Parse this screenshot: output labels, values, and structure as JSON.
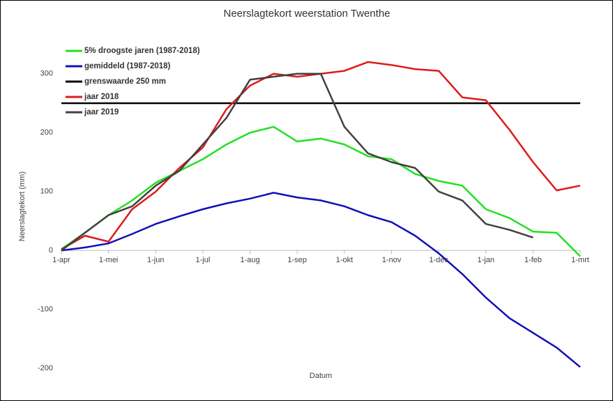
{
  "chart_data": {
    "type": "line",
    "title": "Neerslagtekort weerstation Twenthe",
    "x_label": "Datum",
    "y_label": "Neerslagtekort (mm)",
    "categories": [
      "1-apr",
      null,
      "1-mei",
      null,
      "1-jun",
      null,
      "1-jul",
      null,
      "1-aug",
      null,
      "1-sep",
      null,
      "1-okt",
      null,
      "1-nov",
      null,
      "1-dec",
      null,
      "1-jan",
      null,
      "1-feb",
      null,
      "1-mrt"
    ],
    "series": [
      {
        "name": "5% droogste jaren (1987-2018)",
        "color": "#22e022",
        "values": [
          2,
          30,
          60,
          85,
          115,
          135,
          155,
          180,
          200,
          210,
          185,
          190,
          180,
          160,
          155,
          130,
          118,
          110,
          70,
          55,
          32,
          30,
          -10
        ]
      },
      {
        "name": "gemiddeld (1987-2018)",
        "color": "#1010b8",
        "values": [
          0,
          5,
          12,
          28,
          45,
          58,
          70,
          80,
          88,
          98,
          90,
          85,
          75,
          60,
          48,
          25,
          -5,
          -40,
          -80,
          -115,
          -140,
          -165,
          -198
        ]
      },
      {
        "name": "grenswaarde 250 mm",
        "color": "#000000",
        "values": [
          250,
          250,
          250,
          250,
          250,
          250,
          250,
          250,
          250,
          250,
          250,
          250,
          250,
          250,
          250,
          250,
          250,
          250,
          250,
          250,
          250,
          250,
          250
        ]
      },
      {
        "name": "jaar 2018",
        "color": "#dd1a1a",
        "values": [
          2,
          25,
          15,
          70,
          100,
          140,
          175,
          240,
          280,
          300,
          295,
          300,
          305,
          320,
          315,
          308,
          305,
          260,
          255,
          205,
          150,
          102,
          110
        ]
      },
      {
        "name": "jaar 2019",
        "color": "#404040",
        "values": [
          0,
          30,
          60,
          75,
          110,
          135,
          180,
          225,
          290,
          295,
          300,
          300,
          210,
          165,
          150,
          140,
          100,
          85,
          45,
          35,
          22,
          null,
          null
        ]
      }
    ],
    "ylim": [
      -200,
      350
    ],
    "yticks": [
      -200,
      -100,
      0,
      100,
      200,
      300
    ],
    "grid": false,
    "legend": "upper left"
  }
}
